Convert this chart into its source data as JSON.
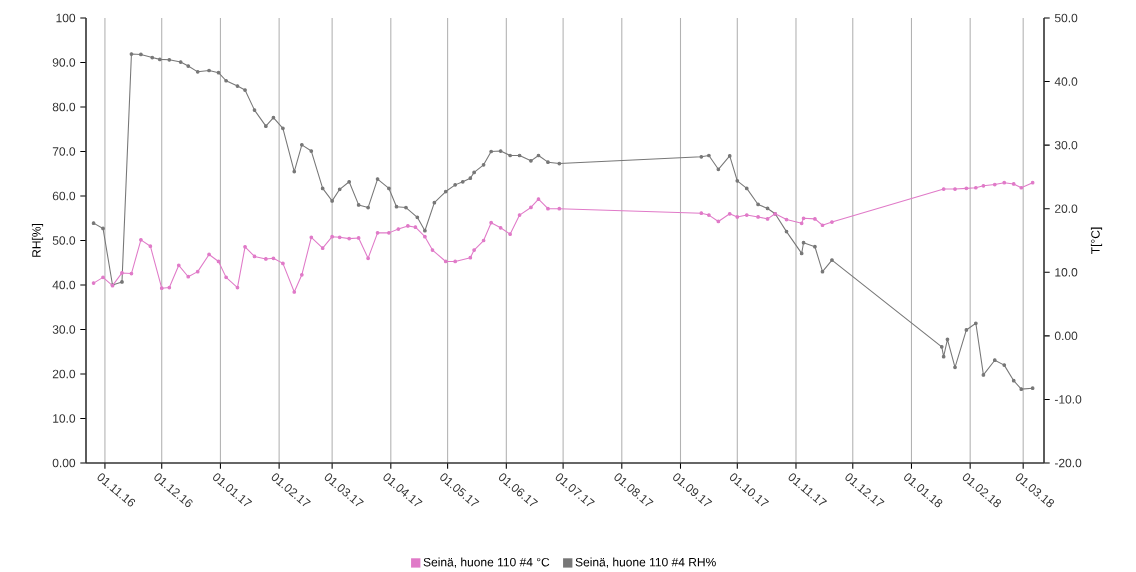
{
  "chart_data": {
    "type": "line",
    "ylabel": "RH[%]",
    "y2label": "T[°C]",
    "xlim": [
      "2016-10-22",
      "2018-03-12"
    ],
    "xticks": [
      {
        "value": "2016-11-01",
        "label": "01.11.16"
      },
      {
        "value": "2016-12-01",
        "label": "01.12.16"
      },
      {
        "value": "2017-01-01",
        "label": "01.01.17"
      },
      {
        "value": "2017-02-01",
        "label": "01.02.17"
      },
      {
        "value": "2017-03-01",
        "label": "01.03.17"
      },
      {
        "value": "2017-04-01",
        "label": "01.04.17"
      },
      {
        "value": "2017-05-01",
        "label": "01.05.17"
      },
      {
        "value": "2017-06-01",
        "label": "01.06.17"
      },
      {
        "value": "2017-07-01",
        "label": "01.07.17"
      },
      {
        "value": "2017-08-01",
        "label": "01.08.17"
      },
      {
        "value": "2017-09-01",
        "label": "01.09.17"
      },
      {
        "value": "2017-10-01",
        "label": "01.10.17"
      },
      {
        "value": "2017-11-01",
        "label": "01.11.17"
      },
      {
        "value": "2017-12-01",
        "label": "01.12.17"
      },
      {
        "value": "2018-01-01",
        "label": "01.01.18"
      },
      {
        "value": "2018-02-01",
        "label": "01.02.18"
      },
      {
        "value": "2018-03-01",
        "label": "01.03.18"
      }
    ],
    "ylim": [
      0,
      100
    ],
    "yticks": [
      {
        "value": 0,
        "label": "0.00"
      },
      {
        "value": 10,
        "label": "10.0"
      },
      {
        "value": 20,
        "label": "20.0"
      },
      {
        "value": 30,
        "label": "30.0"
      },
      {
        "value": 40,
        "label": "40.0"
      },
      {
        "value": 50,
        "label": "50.0"
      },
      {
        "value": 60,
        "label": "60.0"
      },
      {
        "value": 70,
        "label": "70.0"
      },
      {
        "value": 80,
        "label": "80.0"
      },
      {
        "value": 90,
        "label": "90.0"
      },
      100
    ],
    "y2lim": [
      -20,
      50
    ],
    "y2ticks": [
      {
        "value": -20,
        "label": "-20.0"
      },
      {
        "value": -10,
        "label": "-10.0"
      },
      {
        "value": 0,
        "label": "0.00"
      },
      {
        "value": 10,
        "label": "10.0"
      },
      {
        "value": 20,
        "label": "20.0"
      },
      {
        "value": 30,
        "label": "30.0"
      },
      {
        "value": 40,
        "label": "40.0"
      },
      {
        "value": 50,
        "label": "50.0"
      }
    ],
    "grid": "x",
    "legend": "bottom",
    "marker": "circle",
    "line_style": "solid",
    "series": [
      {
        "name": "Seinä, huone 110 #4 °C",
        "color": "#e07ac8",
        "axis": "y2",
        "x": [
          "2016-10-26",
          "2016-10-31",
          "2016-11-05",
          "2016-11-10",
          "2016-11-15",
          "2016-11-20",
          "2016-11-25",
          "2016-12-01",
          "2016-12-05",
          "2016-12-10",
          "2016-12-15",
          "2016-12-20",
          "2016-12-26",
          "2016-12-31",
          "2017-01-04",
          "2017-01-10",
          "2017-01-14",
          "2017-01-19",
          "2017-01-25",
          "2017-01-29",
          "2017-02-03",
          "2017-02-09",
          "2017-02-13",
          "2017-02-18",
          "2017-02-24",
          "2017-03-01",
          "2017-03-05",
          "2017-03-10",
          "2017-03-15",
          "2017-03-20",
          "2017-03-25",
          "2017-03-31",
          "2017-04-05",
          "2017-04-10",
          "2017-04-14",
          "2017-04-19",
          "2017-04-23",
          "2017-04-30",
          "2017-05-05",
          "2017-05-13",
          "2017-05-15",
          "2017-05-20",
          "2017-05-24",
          "2017-05-29",
          "2017-06-03",
          "2017-06-08",
          "2017-06-14",
          "2017-06-18",
          "2017-06-23",
          "2017-06-29",
          "2017-09-12",
          "2017-09-16",
          "2017-09-21",
          "2017-09-27",
          "2017-10-01",
          "2017-10-06",
          "2017-10-12",
          "2017-10-17",
          "2017-10-21",
          "2017-10-27",
          "2017-11-04",
          "2017-11-05",
          "2017-11-11",
          "2017-11-15",
          "2017-11-20",
          "2018-01-18",
          "2018-01-24",
          "2018-01-30",
          "2018-02-04",
          "2018-02-08",
          "2018-02-14",
          "2018-02-19",
          "2018-02-24",
          "2018-02-28",
          "2018-03-06"
        ],
        "values": [
          8.3,
          9.2,
          7.9,
          9.9,
          9.8,
          15.1,
          14.1,
          7.5,
          7.6,
          11.1,
          9.3,
          10.1,
          12.8,
          11.7,
          9.2,
          7.6,
          14.0,
          12.5,
          12.1,
          12.2,
          11.4,
          6.9,
          9.6,
          15.5,
          13.8,
          15.6,
          15.5,
          15.3,
          15.4,
          12.2,
          16.2,
          16.2,
          16.8,
          17.3,
          17.1,
          15.6,
          13.5,
          11.7,
          11.7,
          12.3,
          13.5,
          15.0,
          17.8,
          17.0,
          16.0,
          19.0,
          20.2,
          21.5,
          20.0,
          20.0,
          19.3,
          19.0,
          18.0,
          19.2,
          18.7,
          19.0,
          18.7,
          18.4,
          19.2,
          18.3,
          17.7,
          18.5,
          18.4,
          17.4,
          17.9,
          23.1,
          23.1,
          23.2,
          23.3,
          23.6,
          23.8,
          24.1,
          23.9,
          23.3,
          24.1
        ]
      },
      {
        "name": "Seinä, huone 110 #4 RH%",
        "color": "#777777",
        "axis": "y",
        "x": [
          "2016-10-26",
          "2016-10-31",
          "2016-11-05",
          "2016-11-10",
          "2016-11-15",
          "2016-11-20",
          "2016-11-26",
          "2016-11-30",
          "2016-12-05",
          "2016-12-11",
          "2016-12-15",
          "2016-12-20",
          "2016-12-26",
          "2016-12-31",
          "2017-01-04",
          "2017-01-10",
          "2017-01-14",
          "2017-01-19",
          "2017-01-25",
          "2017-01-29",
          "2017-02-03",
          "2017-02-09",
          "2017-02-13",
          "2017-02-18",
          "2017-02-24",
          "2017-03-01",
          "2017-03-05",
          "2017-03-10",
          "2017-03-15",
          "2017-03-20",
          "2017-03-25",
          "2017-03-31",
          "2017-04-04",
          "2017-04-09",
          "2017-04-15",
          "2017-04-19",
          "2017-04-24",
          "2017-04-30",
          "2017-05-05",
          "2017-05-09",
          "2017-05-13",
          "2017-05-15",
          "2017-05-20",
          "2017-05-24",
          "2017-05-29",
          "2017-06-03",
          "2017-06-08",
          "2017-06-14",
          "2017-06-18",
          "2017-06-23",
          "2017-06-29",
          "2017-09-12",
          "2017-09-16",
          "2017-09-21",
          "2017-09-27",
          "2017-10-01",
          "2017-10-06",
          "2017-10-12",
          "2017-10-17",
          "2017-10-21",
          "2017-10-27",
          "2017-11-04",
          "2017-11-05",
          "2017-11-11",
          "2017-11-15",
          "2017-11-20",
          "2018-01-17",
          "2018-01-18",
          "2018-01-20",
          "2018-01-24",
          "2018-01-30",
          "2018-02-04",
          "2018-02-08",
          "2018-02-14",
          "2018-02-19",
          "2018-02-24",
          "2018-02-28",
          "2018-03-06"
        ],
        "values": [
          53.9,
          52.7,
          40.0,
          40.7,
          91.9,
          91.8,
          91.1,
          90.7,
          90.6,
          90.1,
          89.2,
          87.9,
          88.2,
          87.7,
          85.9,
          84.7,
          83.8,
          79.3,
          75.7,
          77.6,
          75.2,
          65.5,
          71.5,
          70.1,
          61.7,
          58.9,
          61.5,
          63.2,
          58.0,
          57.4,
          63.8,
          61.7,
          57.6,
          57.4,
          55.2,
          52.2,
          58.5,
          61.0,
          62.5,
          63.2,
          64.0,
          65.3,
          67.0,
          70.0,
          70.1,
          69.1,
          69.1,
          67.9,
          69.1,
          67.6,
          67.3,
          68.8,
          69.1,
          66.0,
          69.0,
          63.4,
          61.7,
          58.1,
          57.2,
          56.0,
          52.0,
          47.1,
          49.5,
          48.6,
          43.0,
          45.6,
          26.1,
          23.9,
          27.8,
          21.5,
          29.9,
          31.4,
          19.8,
          23.1,
          22.0,
          18.5,
          16.6,
          16.8
        ]
      }
    ]
  }
}
